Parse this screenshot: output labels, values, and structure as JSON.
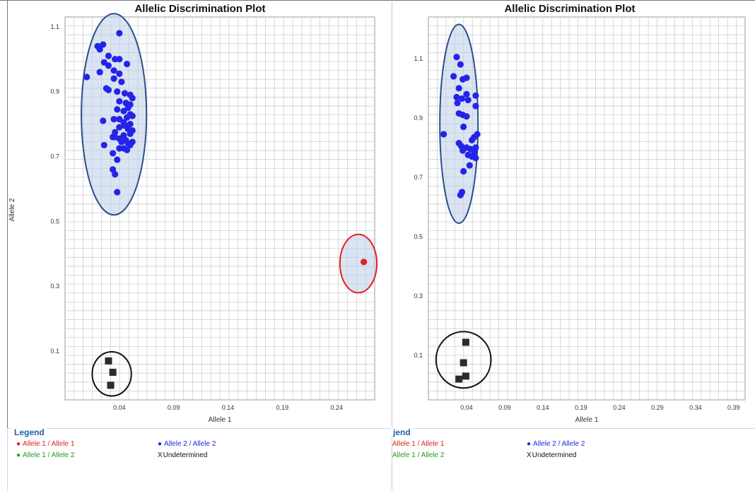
{
  "colors": {
    "allele1": "#e02020",
    "allele2": "#2424e8",
    "het": "#1f9a1f",
    "undetermined": "#111111",
    "legend_title": "#1f5fa8"
  },
  "legend_left": {
    "title": "Legend",
    "items": [
      {
        "marker": "●",
        "label": "Allele 1 / Allele 1"
      },
      {
        "marker": "●",
        "label": "Allele 2 / Allele 2"
      },
      {
        "marker": "●",
        "label": "Allele 1 / Allele 2"
      },
      {
        "marker": "X",
        "label": "Undetermined"
      }
    ]
  },
  "legend_right": {
    "title": "jend",
    "items": [
      {
        "marker": "",
        "label": "Allele 1 / Allele 1"
      },
      {
        "marker": "●",
        "label": "Allele 2 / Allele 2"
      },
      {
        "marker": "",
        "label": "Allele 1 / Allele 2"
      },
      {
        "marker": "X",
        "label": "Undetermined"
      }
    ]
  },
  "chart_data": [
    {
      "type": "scatter",
      "title": "Allelic Discrimination Plot",
      "xlabel": "Allele 1",
      "ylabel": "Allele 2",
      "xlim": [
        -0.01,
        0.275
      ],
      "ylim": [
        -0.05,
        1.13
      ],
      "xticks": [
        "0.04",
        "0.09",
        "0.14",
        "0.19",
        "0.24"
      ],
      "yticks": [
        "0.1",
        "0.3",
        "0.5",
        "0.7",
        "0.9",
        "1.1"
      ],
      "grid": true,
      "series": [
        {
          "group": "allele2",
          "marker": "circle",
          "points": [
            [
              0.04,
              1.08
            ],
            [
              0.02,
              1.04
            ],
            [
              0.025,
              1.045
            ],
            [
              0.022,
              1.03
            ],
            [
              0.03,
              1.01
            ],
            [
              0.036,
              1.0
            ],
            [
              0.04,
              1.0
            ],
            [
              0.026,
              0.99
            ],
            [
              0.03,
              0.98
            ],
            [
              0.047,
              0.985
            ],
            [
              0.022,
              0.96
            ],
            [
              0.035,
              0.965
            ],
            [
              0.04,
              0.955
            ],
            [
              0.01,
              0.945
            ],
            [
              0.035,
              0.94
            ],
            [
              0.042,
              0.93
            ],
            [
              0.028,
              0.91
            ],
            [
              0.03,
              0.905
            ],
            [
              0.038,
              0.9
            ],
            [
              0.045,
              0.895
            ],
            [
              0.05,
              0.89
            ],
            [
              0.052,
              0.88
            ],
            [
              0.04,
              0.87
            ],
            [
              0.046,
              0.865
            ],
            [
              0.05,
              0.86
            ],
            [
              0.048,
              0.85
            ],
            [
              0.038,
              0.845
            ],
            [
              0.044,
              0.84
            ],
            [
              0.05,
              0.83
            ],
            [
              0.052,
              0.825
            ],
            [
              0.047,
              0.82
            ],
            [
              0.035,
              0.815
            ],
            [
              0.04,
              0.815
            ],
            [
              0.025,
              0.81
            ],
            [
              0.044,
              0.805
            ],
            [
              0.05,
              0.8
            ],
            [
              0.045,
              0.795
            ],
            [
              0.04,
              0.79
            ],
            [
              0.048,
              0.785
            ],
            [
              0.052,
              0.78
            ],
            [
              0.036,
              0.775
            ],
            [
              0.05,
              0.77
            ],
            [
              0.044,
              0.765
            ],
            [
              0.034,
              0.76
            ],
            [
              0.04,
              0.755
            ],
            [
              0.046,
              0.75
            ],
            [
              0.052,
              0.745
            ],
            [
              0.048,
              0.74
            ],
            [
              0.05,
              0.735
            ],
            [
              0.026,
              0.735
            ],
            [
              0.044,
              0.725
            ],
            [
              0.047,
              0.72
            ],
            [
              0.04,
              0.725
            ],
            [
              0.034,
              0.71
            ],
            [
              0.038,
              0.69
            ],
            [
              0.042,
              0.745
            ],
            [
              0.036,
              0.76
            ],
            [
              0.034,
              0.66
            ],
            [
              0.036,
              0.645
            ],
            [
              0.038,
              0.59
            ]
          ]
        },
        {
          "group": "allele1",
          "marker": "circle",
          "points": [
            [
              0.265,
              0.375
            ]
          ]
        },
        {
          "group": "undetermined",
          "marker": "square",
          "points": [
            [
              0.03,
              0.07
            ],
            [
              0.034,
              0.035
            ],
            [
              0.032,
              -0.005
            ]
          ]
        }
      ],
      "annotations": [
        {
          "shape": "ellipse",
          "group": "allele2",
          "cx": 0.035,
          "cy": 0.83,
          "rx": 0.03,
          "ry": 0.31
        },
        {
          "shape": "ellipse",
          "group": "allele1",
          "cx": 0.26,
          "cy": 0.37,
          "rx": 0.017,
          "ry": 0.09
        },
        {
          "shape": "ellipse",
          "group": "undetermined",
          "cx": 0.033,
          "cy": 0.03,
          "rx": 0.018,
          "ry": 0.068
        }
      ]
    },
    {
      "type": "scatter",
      "title": "Allelic Discrimination Plot",
      "xlabel": "Allele 1",
      "ylabel": "",
      "xlim": [
        -0.01,
        0.405
      ],
      "ylim": [
        -0.05,
        1.24
      ],
      "xticks": [
        "0.04",
        "0.09",
        "0.14",
        "0.19",
        "0.24",
        "0.29",
        "0.34",
        "0.39"
      ],
      "yticks": [
        "0.1",
        "0.3",
        "0.5",
        "0.7",
        "0.9",
        "1.1"
      ],
      "grid": true,
      "series": [
        {
          "group": "allele2",
          "marker": "circle",
          "points": [
            [
              0.027,
              1.105
            ],
            [
              0.032,
              1.08
            ],
            [
              0.023,
              1.04
            ],
            [
              0.04,
              1.035
            ],
            [
              0.035,
              1.03
            ],
            [
              0.03,
              1.0
            ],
            [
              0.04,
              0.98
            ],
            [
              0.052,
              0.975
            ],
            [
              0.027,
              0.97
            ],
            [
              0.034,
              0.965
            ],
            [
              0.042,
              0.96
            ],
            [
              0.028,
              0.95
            ],
            [
              0.052,
              0.94
            ],
            [
              0.03,
              0.915
            ],
            [
              0.035,
              0.91
            ],
            [
              0.04,
              0.905
            ],
            [
              0.036,
              0.87
            ],
            [
              0.01,
              0.845
            ],
            [
              0.054,
              0.845
            ],
            [
              0.05,
              0.835
            ],
            [
              0.047,
              0.825
            ],
            [
              0.03,
              0.815
            ],
            [
              0.033,
              0.805
            ],
            [
              0.04,
              0.8
            ],
            [
              0.052,
              0.8
            ],
            [
              0.045,
              0.795
            ],
            [
              0.035,
              0.79
            ],
            [
              0.05,
              0.785
            ],
            [
              0.042,
              0.775
            ],
            [
              0.047,
              0.77
            ],
            [
              0.052,
              0.765
            ],
            [
              0.044,
              0.74
            ],
            [
              0.036,
              0.72
            ],
            [
              0.034,
              0.65
            ],
            [
              0.032,
              0.64
            ]
          ]
        },
        {
          "group": "undetermined",
          "marker": "square",
          "points": [
            [
              0.039,
              0.144
            ],
            [
              0.036,
              0.075
            ],
            [
              0.039,
              0.03
            ],
            [
              0.03,
              0.02
            ]
          ]
        }
      ],
      "annotations": [
        {
          "shape": "ellipse",
          "group": "allele2",
          "cx": 0.03,
          "cy": 0.88,
          "rx": 0.025,
          "ry": 0.335
        },
        {
          "shape": "ellipse",
          "group": "undetermined",
          "cx": 0.036,
          "cy": 0.085,
          "rx": 0.036,
          "ry": 0.095
        }
      ]
    }
  ]
}
